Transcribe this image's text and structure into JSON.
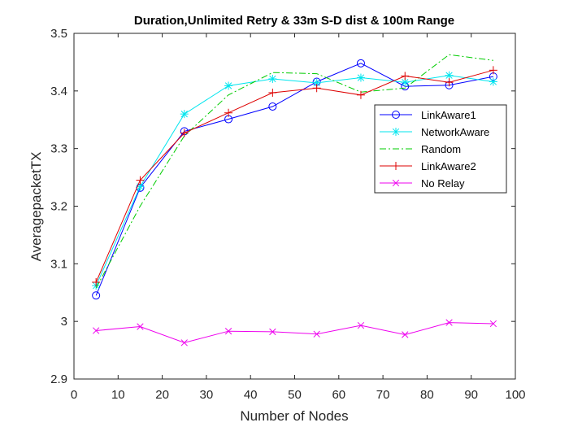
{
  "chart_data": {
    "type": "line",
    "title": "Duration,Unlimited Retry & 33m S-D dist & 100m Range",
    "xlabel": "Number of Nodes",
    "ylabel": "AveragepacketTX",
    "xlim": [
      0,
      100
    ],
    "ylim": [
      2.9,
      3.5
    ],
    "xticks": [
      "0",
      "10",
      "20",
      "30",
      "40",
      "50",
      "60",
      "70",
      "80",
      "90",
      "100"
    ],
    "yticks": [
      "2.9",
      "3",
      "3.1",
      "3.2",
      "3.3",
      "3.4",
      "3.5"
    ],
    "grid": false,
    "legend_position": "top-right",
    "x": [
      5,
      15,
      25,
      35,
      45,
      55,
      65,
      75,
      85,
      95
    ],
    "series": [
      {
        "name": "LinkAware1",
        "color": "#0000ff",
        "marker": "circle",
        "dash": "solid",
        "values": [
          3.045,
          3.232,
          3.33,
          3.351,
          3.373,
          3.416,
          3.448,
          3.408,
          3.41,
          3.425
        ]
      },
      {
        "name": "NetworkAware",
        "color": "#00e5ee",
        "marker": "asterisk",
        "dash": "solid",
        "values": [
          3.062,
          3.234,
          3.36,
          3.409,
          3.421,
          3.414,
          3.423,
          3.415,
          3.427,
          3.416
        ]
      },
      {
        "name": "Random",
        "color": "#00cc00",
        "marker": "none",
        "dash": "dashdot",
        "values": [
          3.058,
          3.2,
          3.322,
          3.393,
          3.432,
          3.43,
          3.398,
          3.405,
          3.463,
          3.453
        ]
      },
      {
        "name": "LinkAware2",
        "color": "#dd0000",
        "marker": "plus",
        "dash": "solid",
        "values": [
          3.068,
          3.245,
          3.327,
          3.362,
          3.397,
          3.405,
          3.393,
          3.426,
          3.415,
          3.436
        ]
      },
      {
        "name": "No Relay",
        "color": "#ee00ee",
        "marker": "x",
        "dash": "solid",
        "values": [
          2.984,
          2.991,
          2.963,
          2.983,
          2.982,
          2.978,
          2.993,
          2.977,
          2.998,
          2.996
        ]
      }
    ]
  }
}
